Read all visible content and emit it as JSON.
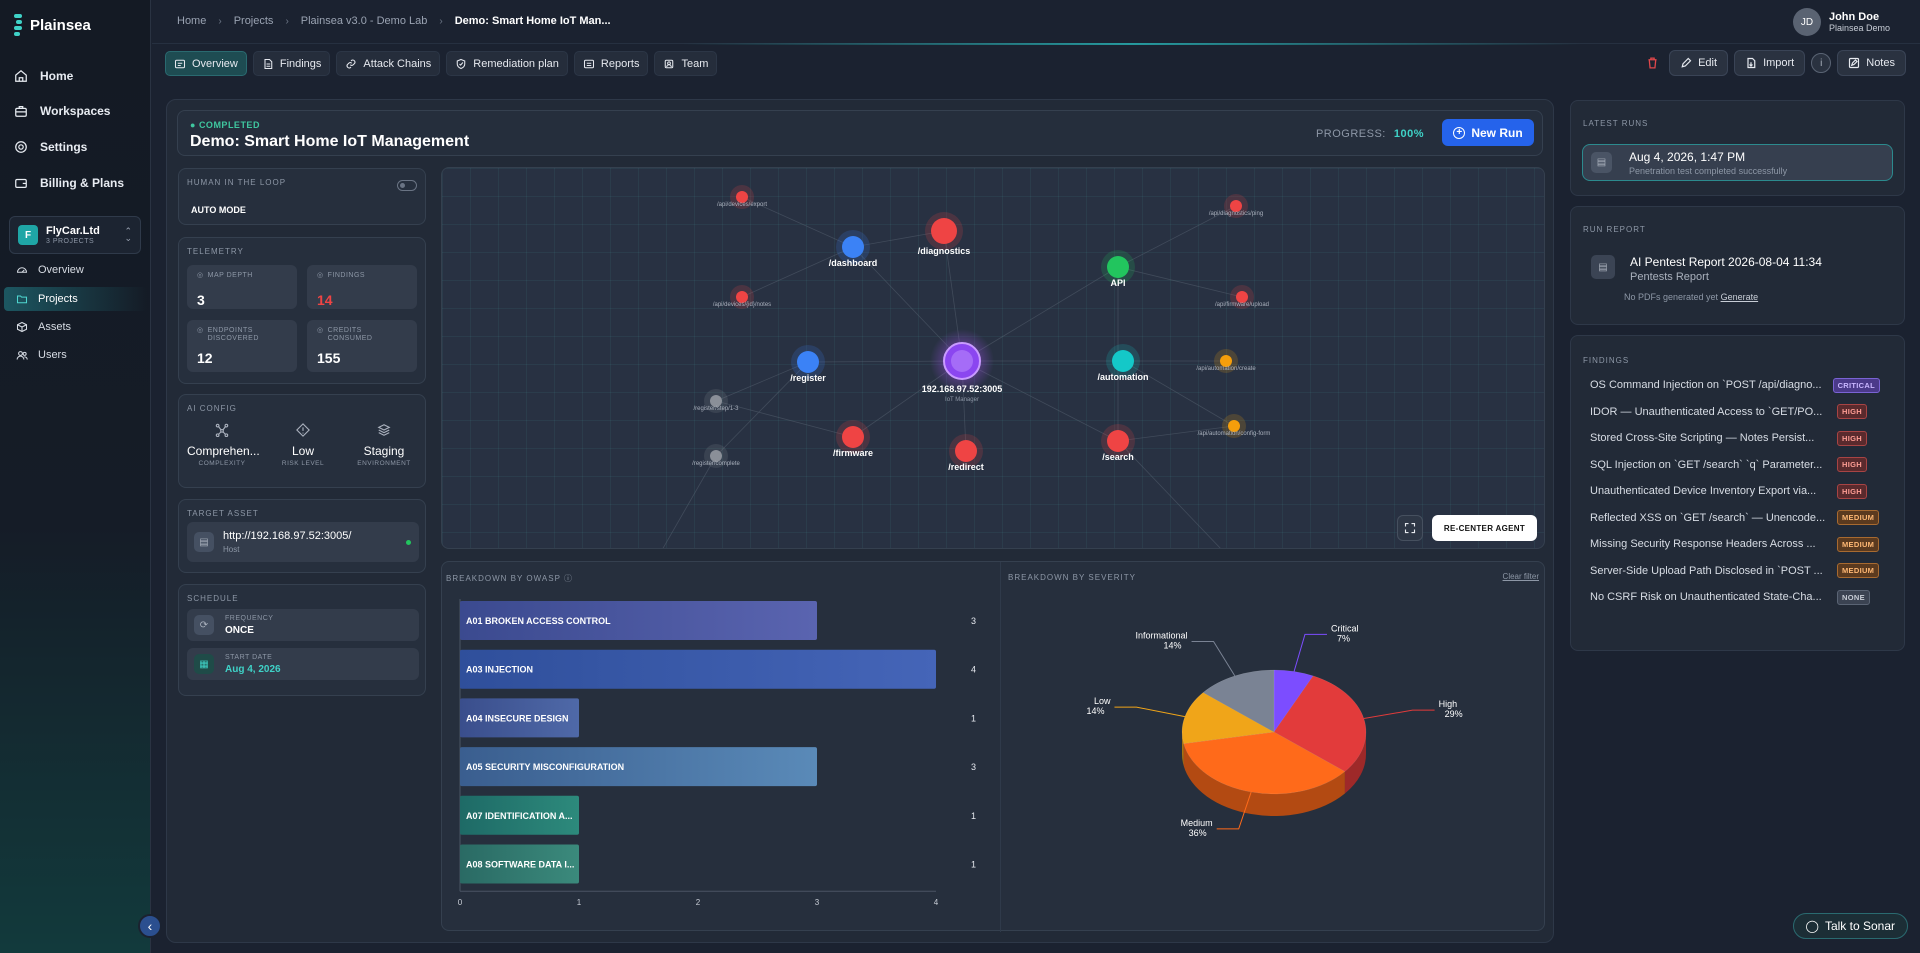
{
  "app": {
    "name": "Plainsea"
  },
  "sidebar": {
    "nav": [
      {
        "label": "Home",
        "icon": "home-icon"
      },
      {
        "label": "Workspaces",
        "icon": "briefcase-icon"
      },
      {
        "label": "Settings",
        "icon": "gear-icon"
      },
      {
        "label": "Billing & Plans",
        "icon": "wallet-icon"
      }
    ],
    "org": {
      "avatar": "F",
      "name": "FlyCar.Ltd",
      "sub": "3 PROJECTS"
    },
    "subnav": [
      {
        "label": "Overview",
        "icon": "gauge-icon"
      },
      {
        "label": "Projects",
        "icon": "folder-icon",
        "active": true
      },
      {
        "label": "Assets",
        "icon": "cube-icon"
      },
      {
        "label": "Users",
        "icon": "users-icon"
      }
    ]
  },
  "breadcrumb": [
    "Home",
    "Projects",
    "Plainsea v3.0 - Demo Lab",
    "Demo: Smart Home IoT Man..."
  ],
  "user": {
    "initials": "JD",
    "name": "John Doe",
    "org": "Plainsea Demo"
  },
  "tabs": [
    "Overview",
    "Findings",
    "Attack Chains",
    "Remediation plan",
    "Reports",
    "Team"
  ],
  "actions": {
    "edit": "Edit",
    "import": "Import",
    "info": "i",
    "notes": "Notes"
  },
  "run": {
    "status": "COMPLETED",
    "title": "Demo: Smart Home IoT Management",
    "progress_label": "PROGRESS:",
    "progress_value": "100%",
    "new_run": "New Run"
  },
  "hitl": {
    "label": "HUMAN IN THE LOOP",
    "mode": "AUTO MODE"
  },
  "telemetry": {
    "label": "TELEMETRY",
    "map_depth_label": "MAP DEPTH",
    "map_depth": "3",
    "findings_label": "FINDINGS",
    "findings": "14",
    "endpoints_label": "ENDPOINTS DISCOVERED",
    "endpoints": "12",
    "credits_label": "CREDITS CONSUMED",
    "credits": "155"
  },
  "ai_config": {
    "label": "AI CONFIG",
    "items": [
      {
        "value": "Comprehen...",
        "label": "COMPLEXITY"
      },
      {
        "value": "Low",
        "label": "RISK LEVEL"
      },
      {
        "value": "Staging",
        "label": "ENVIRONMENT"
      }
    ]
  },
  "target": {
    "label": "TARGET ASSET",
    "url": "http://192.168.97.52:3005/",
    "type": "Host"
  },
  "schedule": {
    "label": "SCHEDULE",
    "freq_label": "FREQUENCY",
    "freq": "ONCE",
    "start_label": "START DATE",
    "start": "Aug 4, 2026"
  },
  "graph": {
    "center": {
      "label": "192.168.97.52:3005",
      "sub": "IoT Manager"
    },
    "recenter": "RE-CENTER AGENT",
    "nodes": [
      {
        "label": "/dashboard",
        "color": "#3b82f6"
      },
      {
        "label": "/diagnostics",
        "color": "#ef4444"
      },
      {
        "label": "API",
        "color": "#22c55e"
      },
      {
        "label": "/register",
        "color": "#3b82f6"
      },
      {
        "label": "/automation",
        "color": "#14c8c8"
      },
      {
        "label": "/firmware",
        "color": "#ef4444"
      },
      {
        "label": "/redirect",
        "color": "#ef4444"
      },
      {
        "label": "/search",
        "color": "#ef4444"
      },
      {
        "label": "/api/devices/export",
        "color": "#ef4444"
      },
      {
        "label": "/api/devices/{id}/notes",
        "color": "#ef4444"
      },
      {
        "label": "/api/diagnostics/ping",
        "color": "#ef4444"
      },
      {
        "label": "/api/firmware/upload",
        "color": "#ef4444"
      },
      {
        "label": "/api/automation/create",
        "color": "#f59e0b"
      },
      {
        "label": "/api/automation/config-form",
        "color": "#f59e0b"
      },
      {
        "label": "/register/step/1-3",
        "color": "#8a8f98"
      },
      {
        "label": "/register/complete",
        "color": "#8a8f98"
      }
    ]
  },
  "owasp": {
    "label": "BREAKDOWN BY OWASP",
    "chart_data": {
      "type": "bar",
      "orientation": "horizontal",
      "categories": [
        "A01 BROKEN ACCESS CONTROL",
        "A03 INJECTION",
        "A04 INSECURE DESIGN",
        "A05 SECURITY MISCONFIGURATION",
        "A07 IDENTIFICATION A...",
        "A08 SOFTWARE DATA I..."
      ],
      "values": [
        3,
        4,
        1,
        3,
        1,
        1
      ],
      "xlim": [
        0,
        4
      ],
      "ticks": [
        "0",
        "1",
        "2",
        "3",
        "4"
      ]
    }
  },
  "severity": {
    "label": "BREAKDOWN BY SEVERITY",
    "clear": "Clear filter",
    "chart_data": {
      "type": "pie",
      "slices": [
        {
          "name": "Critical",
          "pct": "7%",
          "value": 7,
          "color": "#7c4dff"
        },
        {
          "name": "High",
          "pct": "29%",
          "value": 29,
          "color": "#e23b3b"
        },
        {
          "name": "Medium",
          "pct": "36%",
          "value": 36,
          "color": "#ff6a1a"
        },
        {
          "name": "Low",
          "pct": "14%",
          "value": 14,
          "color": "#f0a519"
        },
        {
          "name": "Informational",
          "pct": "14%",
          "value": 14,
          "color": "#7a8394"
        }
      ]
    }
  },
  "latest_runs": {
    "label": "LATEST RUNS",
    "date": "Aug 4, 2026, 1:47 PM",
    "desc": "Penetration test completed successfully"
  },
  "run_report": {
    "label": "RUN REPORT",
    "title": "AI Pentest Report 2026-08-04 11:34",
    "sub": "Pentests Report",
    "nopdf": "No PDFs generated yet",
    "generate": "Generate"
  },
  "findings": {
    "label": "FINDINGS",
    "items": [
      {
        "title": "OS Command Injection on `POST /api/diagno...",
        "severity": "CRITICAL",
        "cls": "b-critical"
      },
      {
        "title": "IDOR — Unauthenticated Access to `GET/PO...",
        "severity": "HIGH",
        "cls": "b-high"
      },
      {
        "title": "Stored Cross-Site Scripting — Notes Persist...",
        "severity": "HIGH",
        "cls": "b-high"
      },
      {
        "title": "SQL Injection on `GET /search` `q` Parameter...",
        "severity": "HIGH",
        "cls": "b-high"
      },
      {
        "title": "Unauthenticated Device Inventory Export via...",
        "severity": "HIGH",
        "cls": "b-high"
      },
      {
        "title": "Reflected XSS on `GET /search` — Unencode...",
        "severity": "MEDIUM",
        "cls": "b-medium"
      },
      {
        "title": "Missing Security Response Headers Across ...",
        "severity": "MEDIUM",
        "cls": "b-medium"
      },
      {
        "title": "Server-Side Upload Path Disclosed in `POST ...",
        "severity": "MEDIUM",
        "cls": "b-medium"
      },
      {
        "title": "No CSRF Risk on Unauthenticated State-Cha...",
        "severity": "NONE",
        "cls": "b-none"
      }
    ]
  },
  "sonar": "Talk to Sonar"
}
